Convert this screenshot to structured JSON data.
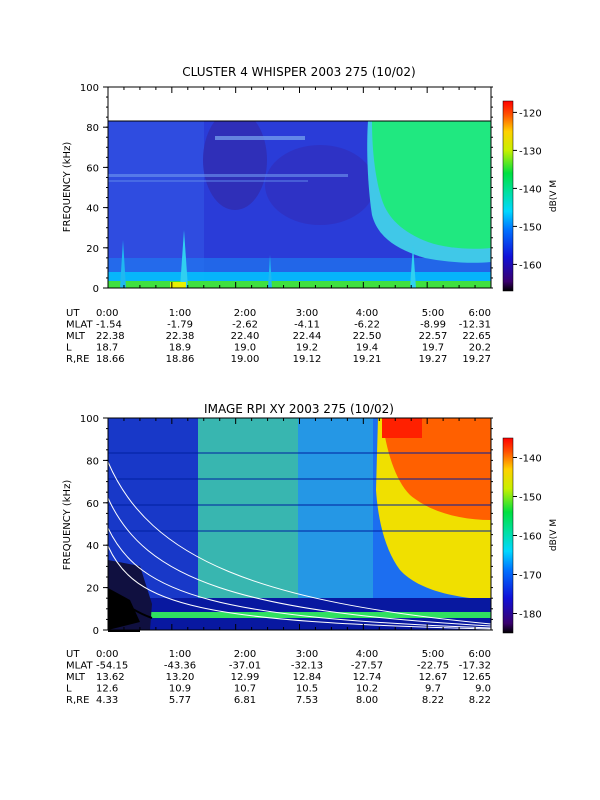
{
  "chart_data": [
    {
      "type": "heatmap",
      "title": "CLUSTER 4 WHISPER 2003 275 (10/02)",
      "ylabel": "FREQUENCY (kHz)",
      "ylim": [
        0,
        100
      ],
      "yticks": [
        "0",
        "20",
        "40",
        "60",
        "80",
        "100"
      ],
      "x_ticks": [
        "0:00",
        "1:00",
        "2:00",
        "3:00",
        "4:00",
        "5:00",
        "6:00"
      ],
      "colorbar": {
        "label_prefix": "dB(",
        "label_sup": "V M",
        "range": [
          -167,
          -117
        ],
        "ticks": [
          "-120",
          "-130",
          "-140",
          "-150",
          "-160"
        ],
        "tick_values": [
          -120,
          -130,
          -140,
          -150,
          -160
        ]
      },
      "data_extent_khz": 80,
      "ephemeris": [
        {
          "label": "UT",
          "values": [
            "0:00",
            "1:00",
            "2:00",
            "3:00",
            "4:00",
            "5:00",
            "6:00"
          ]
        },
        {
          "label": "MLAT",
          "values": [
            "-1.54",
            "-1.79",
            "-2.62",
            "-4.11",
            "-6.22",
            "-8.99",
            "-12.31"
          ]
        },
        {
          "label": "MLT",
          "values": [
            "22.38",
            "22.38",
            "22.40",
            "22.44",
            "22.50",
            "22.57",
            "22.65"
          ]
        },
        {
          "label": "L",
          "values": [
            "18.7",
            "18.9",
            "19.0",
            "19.2",
            "19.4",
            "19.7",
            "20.2"
          ]
        },
        {
          "label": "R,RE",
          "values": [
            "18.66",
            "18.86",
            "19.00",
            "19.12",
            "19.21",
            "19.27",
            "19.27"
          ]
        }
      ]
    },
    {
      "type": "heatmap",
      "title": "IMAGE RPI XY 2003 275 (10/02)",
      "ylabel": "FREQUENCY (kHz)",
      "ylim": [
        0,
        100
      ],
      "yticks": [
        "0",
        "20",
        "40",
        "60",
        "80",
        "100"
      ],
      "x_ticks": [
        "0:00",
        "1:00",
        "2:00",
        "3:00",
        "4:00",
        "5:00",
        "6:00"
      ],
      "colorbar": {
        "label_prefix": "dB(",
        "label_sup": "V M",
        "range": [
          -185,
          -135
        ],
        "ticks": [
          "-140",
          "-150",
          "-160",
          "-170",
          "-180"
        ],
        "tick_values": [
          -140,
          -150,
          -160,
          -170,
          -180
        ]
      },
      "data_extent_khz": 100,
      "ephemeris": [
        {
          "label": "UT",
          "values": [
            "0:00",
            "1:00",
            "2:00",
            "3:00",
            "4:00",
            "5:00",
            "6:00"
          ]
        },
        {
          "label": "MLAT",
          "values": [
            "-54.15",
            "-43.36",
            "-37.01",
            "-32.13",
            "-27.57",
            "-22.75",
            "-17.32"
          ]
        },
        {
          "label": "MLT",
          "values": [
            "13.62",
            "13.20",
            "12.99",
            "12.84",
            "12.74",
            "12.67",
            "12.65"
          ]
        },
        {
          "label": "L",
          "values": [
            "12.6",
            "10.9",
            "10.7",
            "10.5",
            "10.2",
            "9.7",
            "9.0"
          ]
        },
        {
          "label": "R,RE",
          "values": [
            "4.33",
            "5.77",
            "6.81",
            "7.53",
            "8.00",
            "8.22",
            "8.22"
          ]
        }
      ]
    }
  ]
}
